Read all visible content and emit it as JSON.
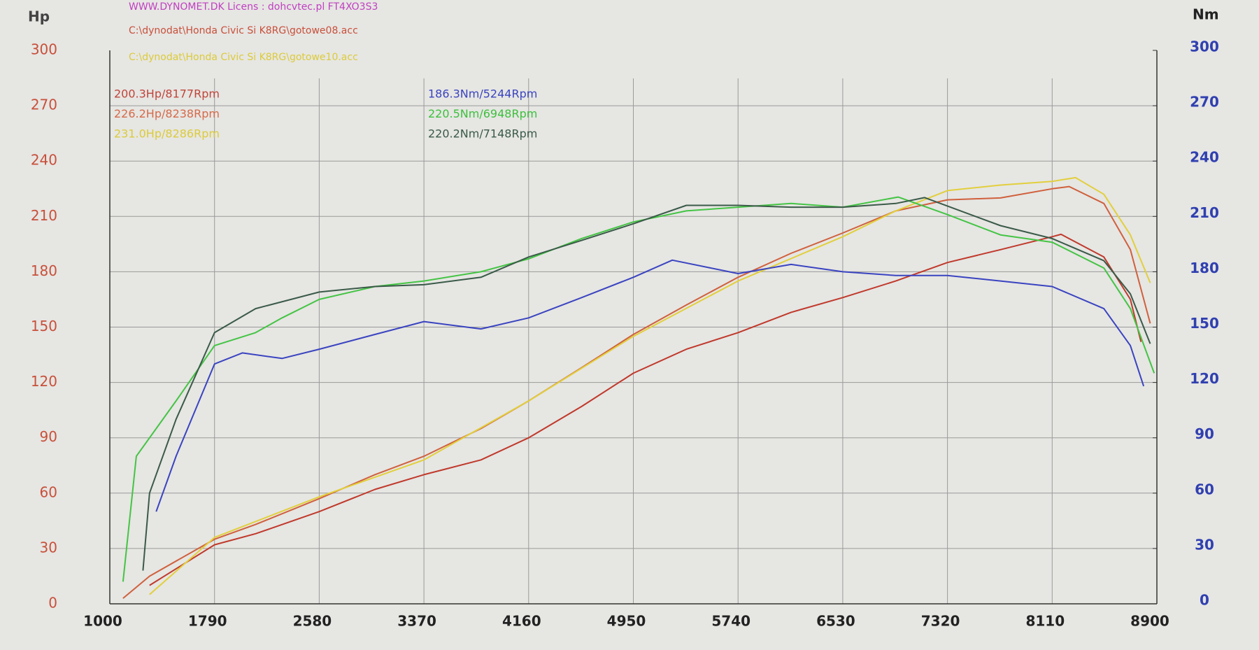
{
  "chart_data": {
    "type": "line",
    "header": [
      {
        "text": "WWW.DYNOMET.DK    Licens :  dohcvtec.pl  FT4XO3S3",
        "color": "#c040c0"
      },
      {
        "text": "C:\\dynodat\\Honda Civic Si K8RG\\gotowe08.acc",
        "color": "#c8503a"
      },
      {
        "text": "C:\\dynodat\\Honda Civic Si K8RG\\gotowe10.acc",
        "color": "#dccb3a"
      }
    ],
    "y_label": "Hp",
    "y2_label": "Nm",
    "annotations": [
      {
        "text": "200.3Hp/8177Rpm",
        "color": "#c0453a"
      },
      {
        "text": "226.2Hp/8238Rpm",
        "color": "#d66a4a"
      },
      {
        "text": "231.0Hp/8286Rpm",
        "color": "#dccb3a"
      },
      {
        "text": "186.3Nm/5244Rpm",
        "color": "#3a44c0"
      },
      {
        "text": "220.5Nm/6948Rpm",
        "color": "#3cc03c"
      },
      {
        "text": "220.2Nm/7148Rpm",
        "color": "#3a5a48"
      }
    ],
    "xlim": [
      1000,
      8900
    ],
    "xticks": [
      1000,
      1790,
      2580,
      3370,
      4160,
      4950,
      5740,
      6530,
      7320,
      8110,
      8900
    ],
    "ylim": [
      0,
      300
    ],
    "yticks": [
      0,
      30,
      60,
      90,
      120,
      150,
      180,
      210,
      240,
      270,
      300
    ],
    "y2lim": [
      0,
      300
    ],
    "y2ticks": [
      0,
      30,
      60,
      90,
      120,
      150,
      180,
      210,
      240,
      270,
      300
    ],
    "y_color": "#c8503a",
    "y2_color": "#3040b0",
    "grid": true,
    "series": [
      {
        "color": "#c0392b",
        "x": [
          1300,
          1790,
          2100,
          2580,
          3000,
          3370,
          3800,
          4160,
          4560,
          4950,
          5350,
          5740,
          6140,
          6530,
          6930,
          7320,
          7720,
          8110,
          8177,
          8500,
          8700,
          8780
        ],
        "values": [
          10,
          32,
          38,
          50,
          62,
          70,
          78,
          90,
          107,
          125,
          138,
          147,
          158,
          166,
          175,
          185,
          192,
          199,
          200.3,
          188,
          165,
          142
        ]
      },
      {
        "color": "#d0603c",
        "x": [
          1100,
          1300,
          1790,
          2100,
          2580,
          3000,
          3370,
          3800,
          4160,
          4560,
          4950,
          5350,
          5740,
          6140,
          6530,
          6930,
          7320,
          7720,
          8110,
          8238,
          8500,
          8700,
          8850
        ],
        "values": [
          3,
          15,
          35,
          43,
          57,
          70,
          80,
          95,
          110,
          128,
          146,
          162,
          177,
          190,
          201,
          213,
          219,
          220,
          225,
          226.2,
          217,
          192,
          152
        ]
      },
      {
        "color": "#e2cf3c",
        "x": [
          1300,
          1790,
          2580,
          3370,
          4160,
          4950,
          5740,
          6530,
          6930,
          7320,
          7720,
          8110,
          8286,
          8500,
          8700,
          8850
        ],
        "values": [
          5,
          36,
          58,
          78,
          110,
          145,
          175,
          199,
          213,
          224,
          227,
          229,
          231,
          222,
          200,
          174
        ]
      },
      {
        "color": "#3a44c0",
        "axis": "y2",
        "x": [
          1350,
          1500,
          1790,
          2000,
          2300,
          2580,
          3000,
          3370,
          3800,
          4160,
          4560,
          4950,
          5244,
          5740,
          6140,
          6530,
          6930,
          7320,
          7720,
          8110,
          8500,
          8700,
          8800
        ],
        "values": [
          50,
          80,
          130,
          136,
          133,
          138,
          146,
          153,
          149,
          155,
          166,
          177,
          186.3,
          179,
          184,
          180,
          178,
          178,
          175,
          172,
          160,
          140,
          118
        ]
      },
      {
        "color": "#44c444",
        "axis": "y2",
        "x": [
          1100,
          1200,
          1500,
          1790,
          2100,
          2300,
          2580,
          3000,
          3370,
          3800,
          4160,
          4560,
          4950,
          5350,
          5740,
          6140,
          6530,
          6948,
          7320,
          7720,
          8110,
          8500,
          8700,
          8880
        ],
        "values": [
          12,
          80,
          110,
          140,
          147,
          155,
          165,
          172,
          175,
          180,
          187,
          198,
          207,
          213,
          215,
          217,
          215,
          220.5,
          211,
          200,
          196,
          182,
          160,
          125
        ]
      },
      {
        "color": "#3a5a48",
        "axis": "y2",
        "x": [
          1250,
          1300,
          1500,
          1790,
          2100,
          2580,
          3000,
          3370,
          3800,
          4160,
          4560,
          4950,
          5350,
          5740,
          6140,
          6530,
          6930,
          7148,
          7720,
          8110,
          8500,
          8700,
          8850
        ],
        "values": [
          18,
          60,
          100,
          147,
          160,
          169,
          172,
          173,
          177,
          188,
          197,
          206,
          216,
          216,
          215,
          215,
          217,
          220.2,
          205,
          198,
          186,
          168,
          141
        ]
      }
    ]
  }
}
